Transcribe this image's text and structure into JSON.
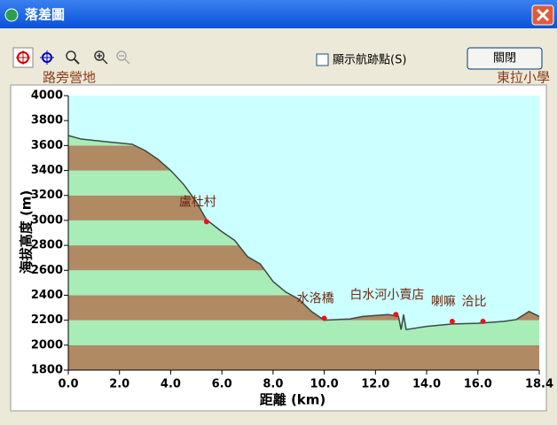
{
  "window": {
    "title": "落差圖",
    "checkbox_label": "顯示航跡點(S)",
    "button_label": "關閉",
    "start_label": "路旁營地",
    "end_label": "東拉小學"
  },
  "chart_data": {
    "type": "line",
    "x_label": "距離  (km)",
    "y_label": "海拔高度 (m)",
    "x": [
      0,
      0.5,
      1.5,
      2.5,
      3,
      3.5,
      4,
      4.5,
      5,
      5.4,
      6,
      6.5,
      7,
      7.5,
      8,
      8.5,
      9,
      9.5,
      10,
      11,
      11.5,
      12.5,
      12.9,
      13,
      13.1,
      13.2,
      14,
      15,
      16,
      17,
      17.5,
      18,
      18.4
    ],
    "series": [
      {
        "color": "#3c4a46",
        "values": [
          3680,
          3652,
          3630,
          3610,
          3560,
          3490,
          3400,
          3290,
          3150,
          3005,
          2910,
          2840,
          2710,
          2650,
          2510,
          2425,
          2370,
          2270,
          2200,
          2210,
          2230,
          2245,
          2230,
          2125,
          2245,
          2125,
          2150,
          2170,
          2175,
          2190,
          2205,
          2270,
          2230
        ]
      }
    ],
    "waypoints": [
      {
        "label": "盧杜村",
        "x": 5.4,
        "y": 2990
      },
      {
        "label": "水洛橋",
        "x": 10.0,
        "y": 2215
      },
      {
        "label": "白水河小賣店",
        "x": 12.8,
        "y": 2245
      },
      {
        "label": "喇嘛",
        "x": 15.0,
        "y": 2190
      },
      {
        "label": "洽比",
        "x": 16.2,
        "y": 2190
      }
    ],
    "waypoint_color": "#e8141e",
    "xlim": [
      0,
      18.4
    ],
    "ylim": [
      1800,
      4000
    ],
    "xticks": [
      {
        "value": 0,
        "label": "0.0"
      },
      {
        "value": 2,
        "label": "2.0"
      },
      {
        "value": 4,
        "label": "4.0"
      },
      {
        "value": 6,
        "label": "6.0"
      },
      {
        "value": 8,
        "label": "8.0"
      },
      {
        "value": 10,
        "label": "10.0"
      },
      {
        "value": 12,
        "label": "12.0"
      },
      {
        "value": 14,
        "label": "14.0"
      },
      {
        "value": 16,
        "label": "16.0"
      },
      18.4
    ],
    "yticks": [
      1800,
      2000,
      2200,
      2400,
      2600,
      2800,
      3000,
      3200,
      3400,
      3600,
      3800,
      4000
    ],
    "band_colors": [
      "#b08a63",
      "#a8ecb8"
    ],
    "sky_color": "#ccffff",
    "grid": false
  }
}
